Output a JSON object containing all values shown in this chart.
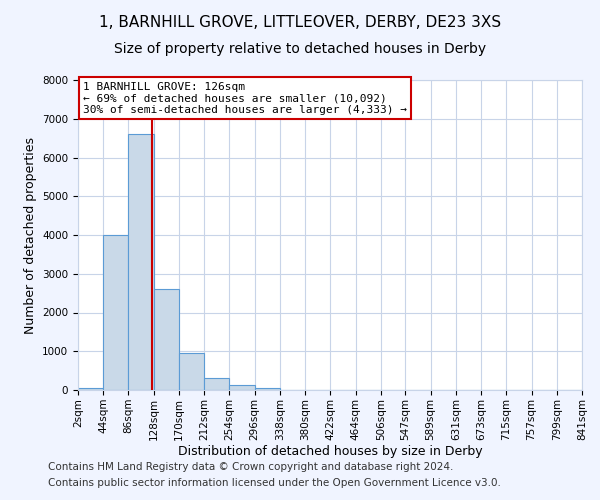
{
  "title": "1, BARNHILL GROVE, LITTLEOVER, DERBY, DE23 3XS",
  "subtitle": "Size of property relative to detached houses in Derby",
  "xlabel": "Distribution of detached houses by size in Derby",
  "ylabel": "Number of detached properties",
  "bin_edges": [
    2,
    44,
    86,
    128,
    170,
    212,
    254,
    296,
    338,
    380,
    422,
    464,
    506,
    547,
    589,
    631,
    673,
    715,
    757,
    799,
    841
  ],
  "bin_heights": [
    50,
    4000,
    6600,
    2600,
    950,
    320,
    130,
    50,
    0,
    0,
    0,
    0,
    0,
    0,
    0,
    0,
    0,
    0,
    0,
    0
  ],
  "bar_color": "#c9d9e8",
  "bar_edge_color": "#5b9bd5",
  "vline_x": 126,
  "vline_color": "#cc0000",
  "ylim": [
    0,
    8000
  ],
  "yticks": [
    0,
    1000,
    2000,
    3000,
    4000,
    5000,
    6000,
    7000,
    8000
  ],
  "annotation_line1": "1 BARNHILL GROVE: 126sqm",
  "annotation_line2": "← 69% of detached houses are smaller (10,092)",
  "annotation_line3": "30% of semi-detached houses are larger (4,333) →",
  "footer_line1": "Contains HM Land Registry data © Crown copyright and database right 2024.",
  "footer_line2": "Contains public sector information licensed under the Open Government Licence v3.0.",
  "bg_color": "#f0f4ff",
  "plot_bg_color": "#ffffff",
  "grid_color": "#c8d4e8",
  "title_fontsize": 11,
  "subtitle_fontsize": 10,
  "axis_label_fontsize": 9,
  "tick_label_fontsize": 7.5,
  "annotation_fontsize": 8,
  "footer_fontsize": 7.5
}
